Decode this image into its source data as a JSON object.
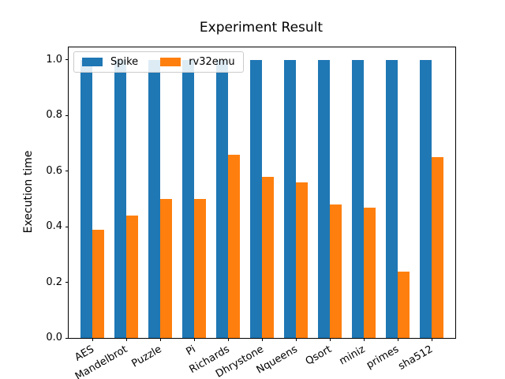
{
  "figure": {
    "background": "#ffffff"
  },
  "chart_data": {
    "type": "bar",
    "title": "Experiment Result",
    "xlabel": "",
    "ylabel": "Execution time",
    "categories": [
      "AES",
      "Mandelbrot",
      "Puzzle",
      "Pi",
      "Richards",
      "Dhrystone",
      "Nqueens",
      "Qsort",
      "miniz",
      "primes",
      "sha512"
    ],
    "series": [
      {
        "name": "Spike",
        "color": "#1f77b4",
        "values": [
          1.0,
          1.0,
          1.0,
          1.0,
          1.0,
          1.0,
          1.0,
          1.0,
          1.0,
          1.0,
          1.0
        ]
      },
      {
        "name": "rv32emu",
        "color": "#ff7f0e",
        "values": [
          0.39,
          0.44,
          0.5,
          0.5,
          0.66,
          0.58,
          0.56,
          0.48,
          0.47,
          0.24,
          0.65
        ]
      }
    ],
    "yticks": [
      0.0,
      0.2,
      0.4,
      0.6,
      0.8,
      1.0
    ],
    "ylim": [
      0,
      1.045
    ],
    "grid": false,
    "legend_position": "upper left",
    "tick_label_rotation_deg": 30
  }
}
